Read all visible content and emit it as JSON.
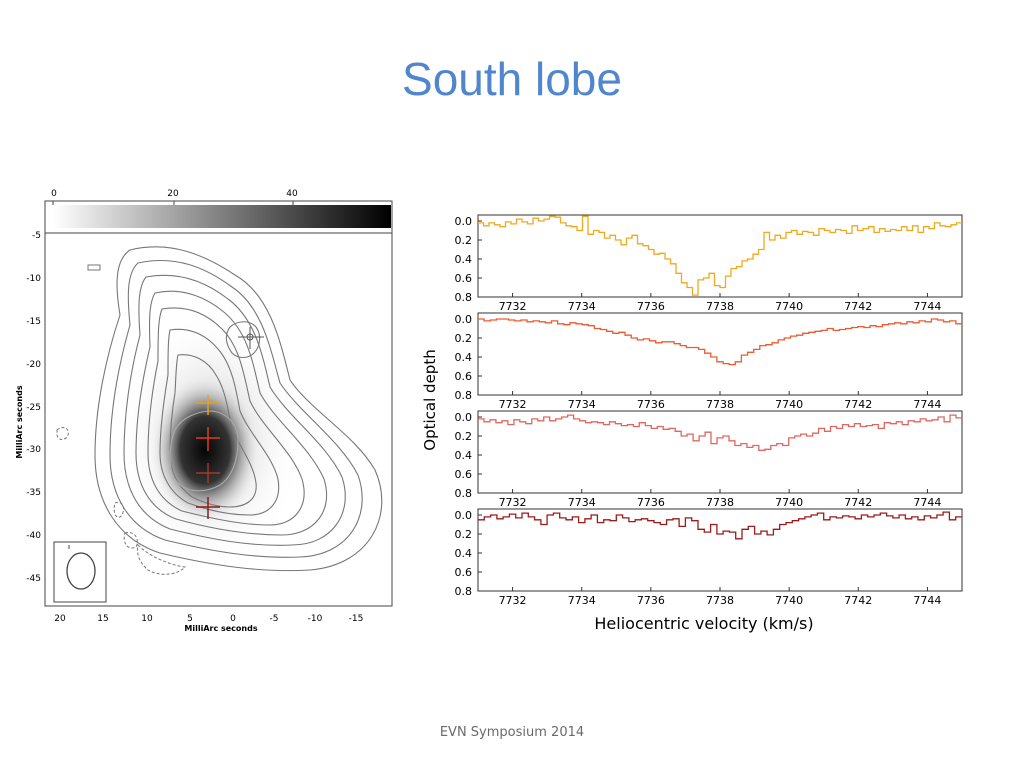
{
  "slide": {
    "title": "South lobe",
    "footer": "EVN Symposium 2014"
  },
  "chart_data": [
    {
      "type": "heatmap",
      "colorbar": {
        "ticks": [
          "0",
          "20",
          "40"
        ],
        "range": [
          0,
          57
        ]
      },
      "xlabel": "MilliArc seconds",
      "ylabel": "MilliArc seconds",
      "xlim": [
        21,
        -19
      ],
      "ylim": [
        -48,
        -5
      ],
      "x_ticks": [
        20,
        15,
        10,
        5,
        0,
        -5,
        -10,
        -15
      ],
      "y_ticks": [
        -5,
        -10,
        -15,
        -20,
        -25,
        -30,
        -35,
        -40,
        -45
      ],
      "markers": [
        {
          "x": -2,
          "y": -17,
          "color": "#555555"
        },
        {
          "x": 3,
          "y": -24.5,
          "color": "#e8a020"
        },
        {
          "x": 3,
          "y": -29,
          "color": "#e03a1e"
        },
        {
          "x": 3,
          "y": -33,
          "color": "#c0392b"
        },
        {
          "x": 3,
          "y": -37,
          "color": "#8b1a1a"
        }
      ]
    },
    {
      "type": "line",
      "xlabel": "Heliocentric velocity (km/s)",
      "ylabel": "Optical depth",
      "xlim": [
        7731,
        7745
      ],
      "ylim": [
        0.8,
        0.0
      ],
      "x_ticks": [
        "7732",
        "7734",
        "7736",
        "7738",
        "7740",
        "7742",
        "7744"
      ],
      "y_ticks": [
        "0.0",
        "0.2",
        "0.4",
        "0.6",
        "0.8"
      ],
      "panels": [
        {
          "color": "#f0a81c",
          "values": [
            0.02,
            0.05,
            0.02,
            0.04,
            0.06,
            0.01,
            0.03,
            -0.02,
            0.01,
            0.03,
            -0.03,
            0.0,
            -0.02,
            -0.05,
            -0.04,
            0.02,
            0.05,
            0.06,
            0.1,
            -0.08,
            0.14,
            0.1,
            0.12,
            0.18,
            0.15,
            0.2,
            0.25,
            0.18,
            0.15,
            0.24,
            0.26,
            0.3,
            0.35,
            0.34,
            0.4,
            0.45,
            0.55,
            0.65,
            0.7,
            0.78,
            0.62,
            0.6,
            0.55,
            0.68,
            0.7,
            0.58,
            0.5,
            0.48,
            0.42,
            0.4,
            0.35,
            0.3,
            0.12,
            0.2,
            0.15,
            0.18,
            0.12,
            0.1,
            0.14,
            0.11,
            0.12,
            0.15,
            0.08,
            0.1,
            0.12,
            0.09,
            0.1,
            0.13,
            0.05,
            0.1,
            0.08,
            0.06,
            0.12,
            0.08,
            0.11,
            0.09,
            0.1,
            0.06,
            0.1,
            0.05,
            0.12,
            0.06,
            0.08,
            0.02,
            0.05,
            0.06,
            0.04,
            0.02
          ]
        },
        {
          "color": "#ef5a2f",
          "values": [
            0.0,
            0.02,
            0.01,
            0.0,
            0.0,
            0.01,
            0.02,
            0.01,
            0.03,
            0.02,
            0.03,
            0.04,
            0.02,
            0.05,
            0.06,
            0.04,
            0.05,
            0.06,
            0.07,
            0.1,
            0.11,
            0.13,
            0.15,
            0.14,
            0.17,
            0.2,
            0.22,
            0.21,
            0.23,
            0.25,
            0.24,
            0.24,
            0.26,
            0.28,
            0.3,
            0.3,
            0.32,
            0.36,
            0.4,
            0.45,
            0.47,
            0.48,
            0.45,
            0.38,
            0.35,
            0.32,
            0.28,
            0.27,
            0.25,
            0.22,
            0.2,
            0.18,
            0.17,
            0.15,
            0.14,
            0.13,
            0.12,
            0.1,
            0.12,
            0.11,
            0.1,
            0.09,
            0.08,
            0.09,
            0.07,
            0.08,
            0.06,
            0.05,
            0.04,
            0.05,
            0.03,
            0.04,
            0.02,
            0.03,
            0.0,
            0.01,
            0.03,
            0.02,
            0.05
          ]
        },
        {
          "color": "#e0675f",
          "values": [
            0.02,
            0.05,
            0.03,
            0.06,
            0.04,
            0.08,
            0.03,
            0.05,
            0.07,
            0.02,
            0.04,
            0.0,
            0.04,
            0.02,
            0.0,
            -0.02,
            0.02,
            0.04,
            0.06,
            0.05,
            0.06,
            0.08,
            0.05,
            0.07,
            0.09,
            0.08,
            0.1,
            0.06,
            0.09,
            0.12,
            0.1,
            0.13,
            0.12,
            0.15,
            0.2,
            0.18,
            0.25,
            0.2,
            0.16,
            0.28,
            0.22,
            0.2,
            0.25,
            0.3,
            0.28,
            0.32,
            0.3,
            0.35,
            0.34,
            0.3,
            0.28,
            0.3,
            0.22,
            0.2,
            0.18,
            0.2,
            0.17,
            0.12,
            0.15,
            0.1,
            0.12,
            0.08,
            0.1,
            0.07,
            0.1,
            0.09,
            0.08,
            0.12,
            0.06,
            0.07,
            0.05,
            0.08,
            0.04,
            0.05,
            0.02,
            0.04,
            0.03,
            0.0,
            0.05,
            -0.02,
            0.01
          ]
        },
        {
          "color": "#9b1b1b",
          "values": [
            0.05,
            0.02,
            0.0,
            0.04,
            0.02,
            -0.01,
            0.03,
            -0.02,
            0.02,
            0.05,
            0.1,
            0.0,
            -0.02,
            0.03,
            0.05,
            0.02,
            0.08,
            0.04,
            0.0,
            0.08,
            0.05,
            0.06,
            0.0,
            0.03,
            0.07,
            0.05,
            0.04,
            0.06,
            0.08,
            0.1,
            0.05,
            0.04,
            0.12,
            0.03,
            0.06,
            0.15,
            0.18,
            0.1,
            0.2,
            0.17,
            0.18,
            0.25,
            0.15,
            0.12,
            0.2,
            0.17,
            0.21,
            0.15,
            0.1,
            0.08,
            0.06,
            0.04,
            0.02,
            0.0,
            -0.02,
            0.05,
            0.02,
            0.03,
            0.01,
            0.02,
            0.04,
            0.0,
            0.02,
            0.0,
            -0.02,
            0.01,
            0.03,
            0.0,
            0.04,
            0.02,
            0.05,
            0.01,
            0.03,
            0.0,
            -0.03,
            0.05,
            0.02
          ]
        }
      ]
    }
  ]
}
